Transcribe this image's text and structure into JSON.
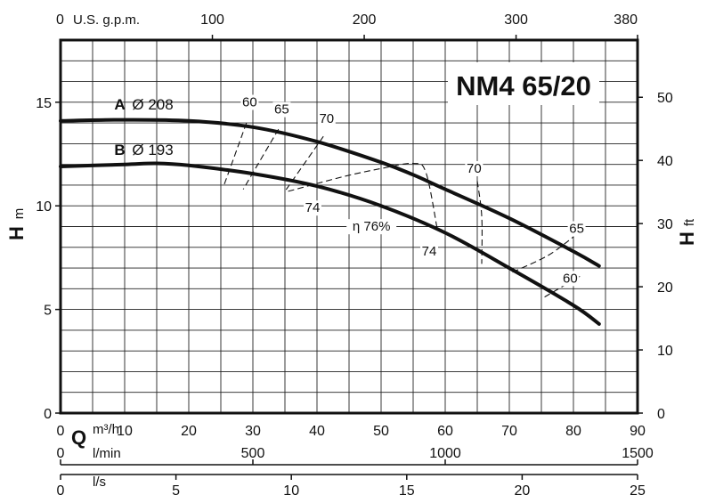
{
  "chart_data": {
    "type": "line",
    "title": "NM4 65/20",
    "axes": {
      "q_m3h": {
        "unit": "m³/h",
        "range": [
          0,
          90
        ],
        "ticks": [
          0,
          10,
          20,
          30,
          40,
          50,
          60,
          70,
          80,
          90
        ]
      },
      "q_lmin": {
        "unit": "l/min",
        "range": [
          0,
          1500
        ],
        "ticks": [
          0,
          500,
          1000,
          1500
        ]
      },
      "q_ls": {
        "unit": "l/s",
        "range": [
          0,
          25
        ],
        "ticks": [
          0,
          5,
          10,
          15,
          20,
          25
        ]
      },
      "q_usgpm": {
        "unit": "U.S. g.p.m.",
        "range": [
          0,
          380
        ],
        "ticks": [
          0,
          100,
          200,
          300,
          380
        ]
      },
      "h_m": {
        "label": "H",
        "unit": "m",
        "range": [
          0,
          18
        ],
        "ticks": [
          0,
          5,
          10,
          15
        ]
      },
      "h_ft": {
        "label": "H",
        "unit": "ft",
        "range": [
          0,
          59.055
        ],
        "ticks": [
          0,
          10,
          20,
          30,
          40,
          50
        ]
      },
      "q_label": "Q"
    },
    "grid": true,
    "series": [
      {
        "name": "A",
        "diameter": "Ø 208",
        "x": [
          0,
          10,
          20,
          30,
          40,
          50,
          55,
          60,
          70,
          80,
          84
        ],
        "y": [
          14.1,
          14.15,
          14.1,
          13.8,
          13.1,
          12.1,
          11.5,
          10.8,
          9.4,
          7.8,
          7.1
        ]
      },
      {
        "name": "B",
        "diameter": "Ø 193",
        "x": [
          0,
          10,
          15,
          20,
          30,
          40,
          50,
          60,
          70,
          80,
          84
        ],
        "y": [
          11.9,
          12.0,
          12.05,
          11.95,
          11.55,
          10.95,
          10.0,
          8.7,
          7.0,
          5.2,
          4.3
        ]
      }
    ],
    "efficiency": {
      "prefix": "η",
      "unit": "%",
      "lines": [
        {
          "value": "60",
          "x": [
            29,
            25.5
          ],
          "y": [
            14.0,
            11.0
          ]
        },
        {
          "value": "65",
          "x": [
            34,
            28.5
          ],
          "y": [
            13.7,
            10.8
          ]
        },
        {
          "value": "70",
          "x": [
            41,
            35
          ],
          "y": [
            13.35,
            10.7
          ]
        },
        {
          "value": "74",
          "x": [
            35.5,
            44,
            50,
            55,
            57,
            58.8
          ],
          "y": [
            10.7,
            11.4,
            11.8,
            12.05,
            11.6,
            8.8
          ]
        },
        {
          "value": "70",
          "x": [
            65,
            65.7,
            65.7
          ],
          "y": [
            11.2,
            9.5,
            7.2
          ]
        },
        {
          "value": "65",
          "x": [
            70.5,
            76,
            80
          ],
          "y": [
            6.8,
            7.6,
            8.5
          ]
        },
        {
          "value": "60",
          "x": [
            75.5,
            81
          ],
          "y": [
            5.6,
            6.6
          ]
        }
      ],
      "labels": [
        {
          "text": "60",
          "x": 29.5,
          "y": 14.8
        },
        {
          "text": "65",
          "x": 34.5,
          "y": 14.45
        },
        {
          "text": "70",
          "x": 41.5,
          "y": 14.0
        },
        {
          "text": "74",
          "x": 39.3,
          "y": 9.7
        },
        {
          "text": "74",
          "x": 57.5,
          "y": 7.6
        },
        {
          "text": "70",
          "x": 64.5,
          "y": 11.6
        },
        {
          "text": "65",
          "x": 80.5,
          "y": 8.7
        },
        {
          "text": "60",
          "x": 79.5,
          "y": 6.3
        },
        {
          "text": "76",
          "x": 48.5,
          "y": 8.8,
          "best": true
        }
      ]
    }
  }
}
